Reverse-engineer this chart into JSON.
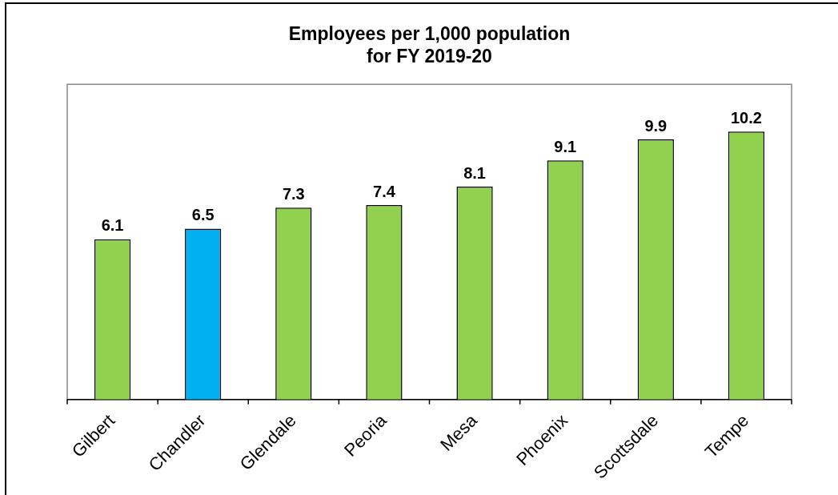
{
  "chart_data": {
    "type": "bar",
    "title": "Employees per 1,000 population\nfor FY 2019-20",
    "categories": [
      "Gilbert",
      "Chandler",
      "Glendale",
      "Peoria",
      "Mesa",
      "Phoenix",
      "Scottsdale",
      "Tempe"
    ],
    "values": [
      6.1,
      6.5,
      7.3,
      7.4,
      8.1,
      9.1,
      9.9,
      10.2
    ],
    "colors": [
      "#92d050",
      "#00b0f0",
      "#92d050",
      "#92d050",
      "#92d050",
      "#92d050",
      "#92d050",
      "#92d050"
    ],
    "ylim": [
      0,
      12
    ],
    "data_labels": true,
    "grid": false,
    "legend": false,
    "tick_labels": "x"
  }
}
